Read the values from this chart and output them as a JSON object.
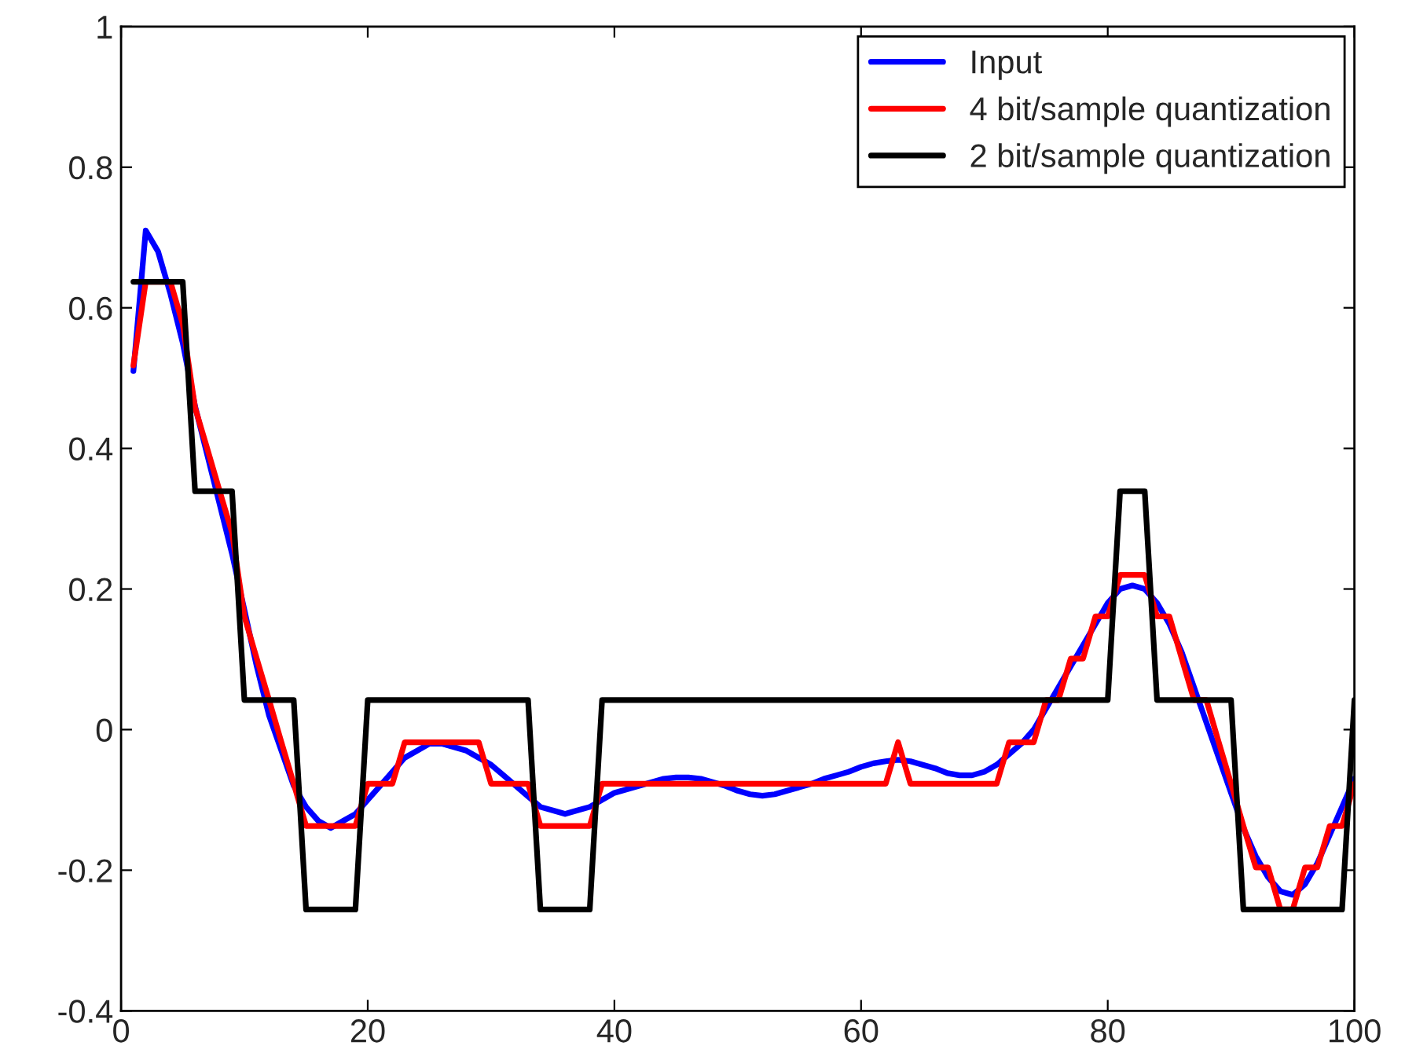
{
  "chart_data": {
    "type": "line",
    "x": [
      1,
      2,
      3,
      4,
      5,
      6,
      7,
      8,
      9,
      10,
      11,
      12,
      13,
      14,
      15,
      16,
      17,
      18,
      19,
      20,
      21,
      22,
      23,
      24,
      25,
      26,
      27,
      28,
      29,
      30,
      31,
      32,
      33,
      34,
      35,
      36,
      37,
      38,
      39,
      40,
      41,
      42,
      43,
      44,
      45,
      46,
      47,
      48,
      49,
      50,
      51,
      52,
      53,
      54,
      55,
      56,
      57,
      58,
      59,
      60,
      61,
      62,
      63,
      64,
      65,
      66,
      67,
      68,
      69,
      70,
      71,
      72,
      73,
      74,
      75,
      76,
      77,
      78,
      79,
      80,
      81,
      82,
      83,
      84,
      85,
      86,
      87,
      88,
      89,
      90,
      91,
      92,
      93,
      94,
      95,
      96,
      97,
      98,
      99,
      100
    ],
    "series": [
      {
        "name": "Input",
        "color": "#0000ff",
        "values": [
          0.51,
          0.71,
          0.68,
          0.62,
          0.55,
          0.46,
          0.39,
          0.32,
          0.25,
          0.17,
          0.09,
          0.02,
          -0.03,
          -0.08,
          -0.11,
          -0.13,
          -0.14,
          -0.13,
          -0.12,
          -0.1,
          -0.08,
          -0.06,
          -0.04,
          -0.03,
          -0.02,
          -0.02,
          -0.025,
          -0.03,
          -0.04,
          -0.05,
          -0.065,
          -0.08,
          -0.095,
          -0.11,
          -0.115,
          -0.12,
          -0.115,
          -0.11,
          -0.1,
          -0.09,
          -0.085,
          -0.08,
          -0.075,
          -0.07,
          -0.068,
          -0.068,
          -0.07,
          -0.075,
          -0.08,
          -0.087,
          -0.092,
          -0.094,
          -0.092,
          -0.087,
          -0.082,
          -0.077,
          -0.07,
          -0.065,
          -0.06,
          -0.053,
          -0.048,
          -0.045,
          -0.043,
          -0.045,
          -0.05,
          -0.055,
          -0.062,
          -0.065,
          -0.065,
          -0.06,
          -0.05,
          -0.035,
          -0.02,
          0.0,
          0.03,
          0.06,
          0.09,
          0.12,
          0.15,
          0.18,
          0.2,
          0.205,
          0.2,
          0.18,
          0.15,
          0.11,
          0.06,
          0.01,
          -0.04,
          -0.09,
          -0.14,
          -0.18,
          -0.21,
          -0.23,
          -0.235,
          -0.22,
          -0.19,
          -0.15,
          -0.11,
          -0.07
        ]
      },
      {
        "name": "4 bit/sample quantization",
        "color": "#ff0000",
        "values": [
          0.518,
          0.637,
          0.637,
          0.637,
          0.577,
          0.458,
          0.399,
          0.339,
          0.28,
          0.161,
          0.101,
          0.042,
          -0.018,
          -0.077,
          -0.137,
          -0.137,
          -0.137,
          -0.137,
          -0.137,
          -0.077,
          -0.077,
          -0.077,
          -0.018,
          -0.018,
          -0.018,
          -0.018,
          -0.018,
          -0.018,
          -0.018,
          -0.077,
          -0.077,
          -0.077,
          -0.077,
          -0.137,
          -0.137,
          -0.137,
          -0.137,
          -0.137,
          -0.077,
          -0.077,
          -0.077,
          -0.077,
          -0.077,
          -0.077,
          -0.077,
          -0.077,
          -0.077,
          -0.077,
          -0.077,
          -0.077,
          -0.077,
          -0.077,
          -0.077,
          -0.077,
          -0.077,
          -0.077,
          -0.077,
          -0.077,
          -0.077,
          -0.077,
          -0.077,
          -0.077,
          -0.018,
          -0.077,
          -0.077,
          -0.077,
          -0.077,
          -0.077,
          -0.077,
          -0.077,
          -0.077,
          -0.018,
          -0.018,
          -0.018,
          0.042,
          0.042,
          0.101,
          0.101,
          0.161,
          0.161,
          0.22,
          0.22,
          0.22,
          0.161,
          0.161,
          0.101,
          0.042,
          0.042,
          -0.018,
          -0.077,
          -0.137,
          -0.196,
          -0.196,
          -0.256,
          -0.256,
          -0.196,
          -0.196,
          -0.137,
          -0.137,
          -0.077
        ]
      },
      {
        "name": "2 bit/sample quantization",
        "color": "#000000",
        "x": [
          1,
          5,
          6,
          9,
          10,
          14,
          15,
          19,
          20,
          33,
          34,
          38,
          39,
          80,
          81,
          83,
          84,
          90,
          91,
          99,
          100
        ],
        "values": [
          0.637,
          0.637,
          0.339,
          0.339,
          0.042,
          0.042,
          -0.256,
          -0.256,
          0.042,
          0.042,
          -0.256,
          -0.256,
          0.042,
          0.042,
          0.339,
          0.339,
          0.042,
          0.042,
          -0.256,
          -0.256,
          0.042
        ]
      }
    ],
    "xlim": [
      0,
      100
    ],
    "xticks": [
      0,
      20,
      40,
      60,
      80,
      100
    ],
    "ylim": [
      -0.4,
      1
    ],
    "yticks": [
      -0.4,
      -0.2,
      0,
      0.2,
      0.4,
      0.6,
      0.8,
      1
    ],
    "grid": false,
    "legend": "top right",
    "line_style": "solid",
    "marker": "none"
  }
}
